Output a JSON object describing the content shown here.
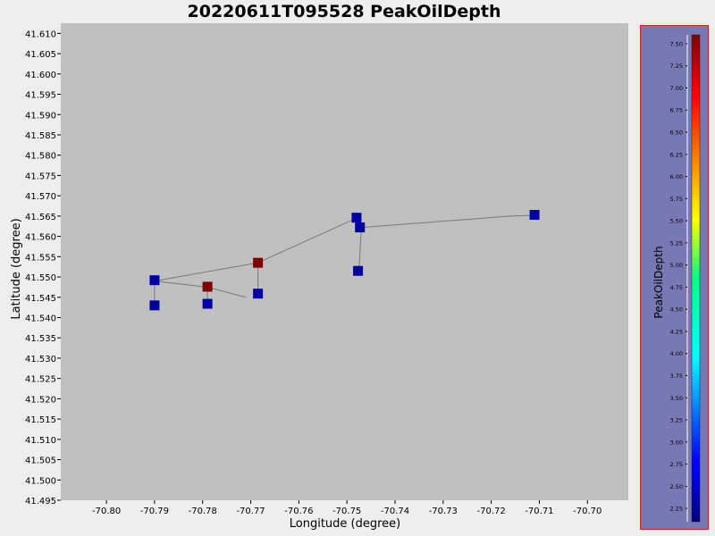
{
  "chart_data": {
    "type": "scatter",
    "title": "20220611T095528 PeakOilDepth",
    "xlabel": "Longitude (degree)",
    "ylabel": "Latitude (degree)",
    "xlim": [
      -70.8095,
      -70.6915
    ],
    "ylim": [
      41.495,
      41.6125
    ],
    "xticks": [
      -70.8,
      -70.79,
      -70.78,
      -70.77,
      -70.76,
      -70.75,
      -70.74,
      -70.73,
      -70.72,
      -70.71,
      -70.7
    ],
    "xtick_labels": [
      "-70.80",
      "-70.79",
      "-70.78",
      "-70.77",
      "-70.76",
      "-70.75",
      "-70.74",
      "-70.73",
      "-70.72",
      "-70.71",
      "-70.70"
    ],
    "yticks": [
      41.61,
      41.605,
      41.6,
      41.595,
      41.59,
      41.585,
      41.58,
      41.575,
      41.57,
      41.565,
      41.56,
      41.555,
      41.55,
      41.545,
      41.54,
      41.535,
      41.53,
      41.525,
      41.52,
      41.515,
      41.51,
      41.505,
      41.5,
      41.495
    ],
    "ytick_labels": [
      "41.610",
      "41.605",
      "41.600",
      "41.595",
      "41.590",
      "41.585",
      "41.580",
      "41.575",
      "41.570",
      "41.565",
      "41.560",
      "41.555",
      "41.550",
      "41.545",
      "41.540",
      "41.535",
      "41.530",
      "41.525",
      "41.520",
      "41.515",
      "41.510",
      "41.505",
      "41.500",
      "41.495"
    ],
    "grid": false,
    "plot_background": "#c0c0c0",
    "track": [
      {
        "x": -70.79,
        "y": 41.543
      },
      {
        "x": -70.79,
        "y": 41.549
      },
      {
        "x": -70.779,
        "y": 41.5475
      },
      {
        "x": -70.779,
        "y": 41.5435
      },
      {
        "x": -70.779,
        "y": 41.5475
      },
      {
        "x": -70.771,
        "y": 41.545
      },
      {
        "x": -70.779,
        "y": 41.5475
      },
      {
        "x": -70.79,
        "y": 41.549
      },
      {
        "x": -70.7685,
        "y": 41.5535
      },
      {
        "x": -70.7685,
        "y": 41.546
      },
      {
        "x": -70.7685,
        "y": 41.5535
      },
      {
        "x": -70.748,
        "y": 41.5645
      },
      {
        "x": -70.747,
        "y": 41.5622
      },
      {
        "x": -70.7475,
        "y": 41.5515
      },
      {
        "x": -70.747,
        "y": 41.5622
      },
      {
        "x": -70.716,
        "y": 41.565
      },
      {
        "x": -70.711,
        "y": 41.5652
      }
    ],
    "points": [
      {
        "x": -70.79,
        "y": 41.543,
        "value": 2.2
      },
      {
        "x": -70.79,
        "y": 41.5492,
        "value": 2.3
      },
      {
        "x": -70.779,
        "y": 41.5476,
        "value": 7.6
      },
      {
        "x": -70.779,
        "y": 41.5434,
        "value": 2.3
      },
      {
        "x": -70.7685,
        "y": 41.5535,
        "value": 7.6
      },
      {
        "x": -70.7685,
        "y": 41.5459,
        "value": 2.3
      },
      {
        "x": -70.748,
        "y": 41.5646,
        "value": 2.3
      },
      {
        "x": -70.7473,
        "y": 41.5622,
        "value": 2.3
      },
      {
        "x": -70.7477,
        "y": 41.5515,
        "value": 2.3
      },
      {
        "x": -70.711,
        "y": 41.5653,
        "value": 2.3
      }
    ],
    "colorbar": {
      "label": "PeakOilDepth",
      "min": 2.1,
      "max": 7.6,
      "ticks": [
        7.5,
        7.25,
        7.0,
        6.75,
        6.5,
        6.25,
        6.0,
        5.75,
        5.5,
        5.25,
        5.0,
        4.75,
        4.5,
        4.25,
        4.0,
        3.75,
        3.5,
        3.25,
        3.0,
        2.75,
        2.5,
        2.25
      ],
      "tick_labels": [
        "7.50",
        "7.25",
        "7.00",
        "6.75",
        "6.50",
        "6.25",
        "6.00",
        "5.75",
        "5.50",
        "5.25",
        "5.00",
        "4.75",
        "4.50",
        "4.25",
        "4.00",
        "3.75",
        "3.50",
        "3.25",
        "3.00",
        "2.75",
        "2.50",
        "2.25"
      ],
      "colormap": "jet"
    }
  }
}
